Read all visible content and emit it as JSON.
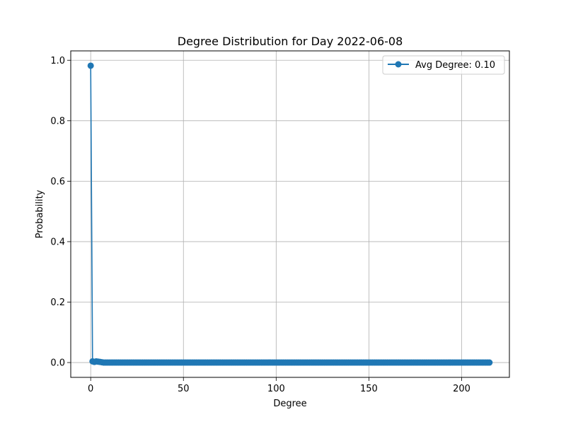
{
  "chart_data": {
    "type": "line",
    "title": "Degree Distribution for Day 2022-06-08",
    "xlabel": "Degree",
    "ylabel": "Probability",
    "xlim": [
      -10.75,
      225.75
    ],
    "ylim": [
      -0.049,
      1.031
    ],
    "xticks": [
      0,
      50,
      100,
      150,
      200
    ],
    "xtick_labels": [
      "0",
      "50",
      "100",
      "150",
      "200"
    ],
    "yticks": [
      0.0,
      0.2,
      0.4,
      0.6,
      0.8,
      1.0
    ],
    "ytick_labels": [
      "0.0",
      "0.2",
      "0.4",
      "0.6",
      "0.8",
      "1.0"
    ],
    "grid": true,
    "legend_position": "top-right",
    "series": [
      {
        "name": "Avg Degree: 0.10",
        "color": "#1f77b4",
        "marker": "circle",
        "x_start": 0,
        "x_end": 215,
        "x_step": 1,
        "nonzero_points": [
          [
            0,
            0.982
          ],
          [
            1,
            0.004
          ],
          [
            2,
            0.002
          ],
          [
            3,
            0.004
          ],
          [
            4,
            0.003
          ],
          [
            5,
            0.002
          ],
          [
            6,
            0.001
          ]
        ],
        "baseline_value": 0.0
      }
    ]
  }
}
